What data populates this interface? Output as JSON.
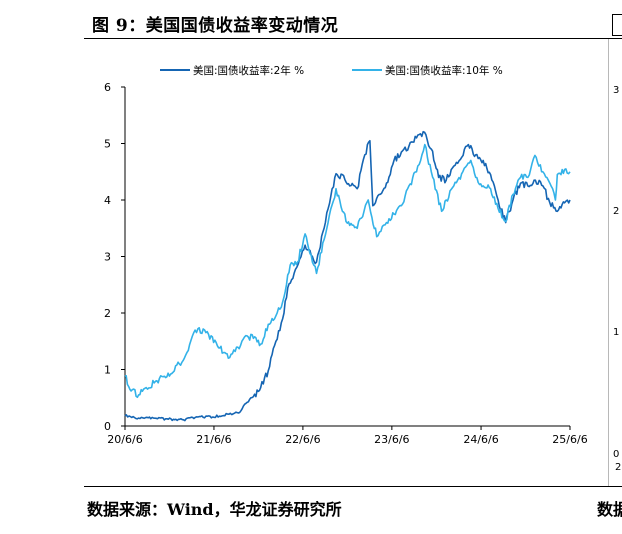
{
  "figure": {
    "title": "图 9：美国国债收益率变动情况",
    "source": "数据来源：Wind，华龙证券研究所",
    "source_cut": "数据"
  },
  "colors": {
    "series_2y": "#1565b3",
    "series_10y": "#33b2e8",
    "axis": "#000000"
  },
  "right_panel_ticks": [
    "3",
    "2",
    "1",
    "0",
    "2"
  ],
  "chart_data": {
    "type": "line",
    "title": "",
    "xlabel": "",
    "ylabel": "",
    "ylim": [
      0,
      6
    ],
    "xlim": [
      "2020-06-06",
      "2025-06-06"
    ],
    "x_ticks": [
      "20/6/6",
      "21/6/6",
      "22/6/6",
      "23/6/6",
      "24/6/6",
      "25/6/6"
    ],
    "y_ticks": [
      "0",
      "1",
      "2",
      "3",
      "4",
      "5",
      "6"
    ],
    "grid": false,
    "legend_position": "top",
    "series": [
      {
        "name": "美国:国债收益率:2年 %",
        "color": "#1565b3",
        "points": [
          [
            "2020-06-06",
            0.18
          ],
          [
            "2020-08-01",
            0.14
          ],
          [
            "2020-10-01",
            0.14
          ],
          [
            "2020-12-01",
            0.12
          ],
          [
            "2021-02-01",
            0.11
          ],
          [
            "2021-04-01",
            0.16
          ],
          [
            "2021-06-01",
            0.16
          ],
          [
            "2021-08-01",
            0.21
          ],
          [
            "2021-09-15",
            0.23
          ],
          [
            "2021-10-15",
            0.4
          ],
          [
            "2021-11-15",
            0.52
          ],
          [
            "2021-12-15",
            0.68
          ],
          [
            "2022-01-15",
            0.98
          ],
          [
            "2022-02-15",
            1.5
          ],
          [
            "2022-03-15",
            1.9
          ],
          [
            "2022-04-05",
            2.45
          ],
          [
            "2022-05-01",
            2.7
          ],
          [
            "2022-06-15",
            3.2
          ],
          [
            "2022-07-15",
            3.0
          ],
          [
            "2022-08-01",
            2.9
          ],
          [
            "2022-09-01",
            3.5
          ],
          [
            "2022-10-15",
            4.4
          ],
          [
            "2022-11-15",
            4.45
          ],
          [
            "2022-12-15",
            4.25
          ],
          [
            "2023-01-15",
            4.2
          ],
          [
            "2023-02-15",
            4.8
          ],
          [
            "2023-03-08",
            5.05
          ],
          [
            "2023-03-20",
            3.9
          ],
          [
            "2023-04-15",
            4.1
          ],
          [
            "2023-05-15",
            4.3
          ],
          [
            "2023-06-15",
            4.7
          ],
          [
            "2023-07-15",
            4.85
          ],
          [
            "2023-08-15",
            4.95
          ],
          [
            "2023-09-15",
            5.1
          ],
          [
            "2023-10-18",
            5.2
          ],
          [
            "2023-11-15",
            4.9
          ],
          [
            "2023-12-15",
            4.4
          ],
          [
            "2024-01-15",
            4.35
          ],
          [
            "2024-02-15",
            4.6
          ],
          [
            "2024-04-15",
            4.98
          ],
          [
            "2024-05-15",
            4.8
          ],
          [
            "2024-06-15",
            4.7
          ],
          [
            "2024-07-15",
            4.45
          ],
          [
            "2024-08-15",
            4.0
          ],
          [
            "2024-09-15",
            3.6
          ],
          [
            "2024-10-15",
            4.0
          ],
          [
            "2024-11-15",
            4.3
          ],
          [
            "2024-12-15",
            4.25
          ],
          [
            "2025-01-15",
            4.35
          ],
          [
            "2025-02-15",
            4.25
          ],
          [
            "2025-03-15",
            3.95
          ],
          [
            "2025-04-15",
            3.8
          ],
          [
            "2025-05-15",
            3.95
          ],
          [
            "2025-06-06",
            4.0
          ]
        ]
      },
      {
        "name": "美国:国债收益率:10年 %",
        "color": "#33b2e8",
        "points": [
          [
            "2020-06-06",
            0.88
          ],
          [
            "2020-07-01",
            0.62
          ],
          [
            "2020-08-01",
            0.55
          ],
          [
            "2020-09-01",
            0.68
          ],
          [
            "2020-10-15",
            0.8
          ],
          [
            "2020-11-15",
            0.88
          ],
          [
            "2020-12-15",
            0.93
          ],
          [
            "2021-01-15",
            1.1
          ],
          [
            "2021-02-15",
            1.3
          ],
          [
            "2021-03-15",
            1.65
          ],
          [
            "2021-04-01",
            1.72
          ],
          [
            "2021-05-15",
            1.62
          ],
          [
            "2021-06-15",
            1.48
          ],
          [
            "2021-07-15",
            1.3
          ],
          [
            "2021-08-04",
            1.2
          ],
          [
            "2021-09-01",
            1.32
          ],
          [
            "2021-10-15",
            1.6
          ],
          [
            "2021-11-15",
            1.55
          ],
          [
            "2021-12-15",
            1.45
          ],
          [
            "2022-01-15",
            1.8
          ],
          [
            "2022-02-15",
            1.95
          ],
          [
            "2022-03-15",
            2.2
          ],
          [
            "2022-04-15",
            2.85
          ],
          [
            "2022-05-15",
            2.9
          ],
          [
            "2022-06-15",
            3.4
          ],
          [
            "2022-07-15",
            2.9
          ],
          [
            "2022-08-01",
            2.7
          ],
          [
            "2022-09-01",
            3.3
          ],
          [
            "2022-10-20",
            4.2
          ],
          [
            "2022-11-15",
            3.8
          ],
          [
            "2022-12-15",
            3.55
          ],
          [
            "2023-01-15",
            3.5
          ],
          [
            "2023-03-01",
            4.0
          ],
          [
            "2023-04-05",
            3.35
          ],
          [
            "2023-05-15",
            3.6
          ],
          [
            "2023-06-15",
            3.75
          ],
          [
            "2023-07-15",
            3.9
          ],
          [
            "2023-08-15",
            4.25
          ],
          [
            "2023-09-15",
            4.5
          ],
          [
            "2023-10-19",
            4.98
          ],
          [
            "2023-11-15",
            4.5
          ],
          [
            "2023-12-27",
            3.8
          ],
          [
            "2024-01-15",
            4.0
          ],
          [
            "2024-02-15",
            4.25
          ],
          [
            "2024-04-25",
            4.7
          ],
          [
            "2024-05-15",
            4.4
          ],
          [
            "2024-06-15",
            4.25
          ],
          [
            "2024-07-15",
            4.2
          ],
          [
            "2024-08-15",
            3.85
          ],
          [
            "2024-09-15",
            3.62
          ],
          [
            "2024-10-15",
            4.1
          ],
          [
            "2024-11-15",
            4.4
          ],
          [
            "2024-12-15",
            4.4
          ],
          [
            "2025-01-13",
            4.79
          ],
          [
            "2025-02-15",
            4.5
          ],
          [
            "2025-03-15",
            4.3
          ],
          [
            "2025-04-07",
            4.0
          ],
          [
            "2025-04-15",
            4.45
          ],
          [
            "2025-05-20",
            4.55
          ],
          [
            "2025-06-06",
            4.5
          ]
        ]
      }
    ]
  }
}
